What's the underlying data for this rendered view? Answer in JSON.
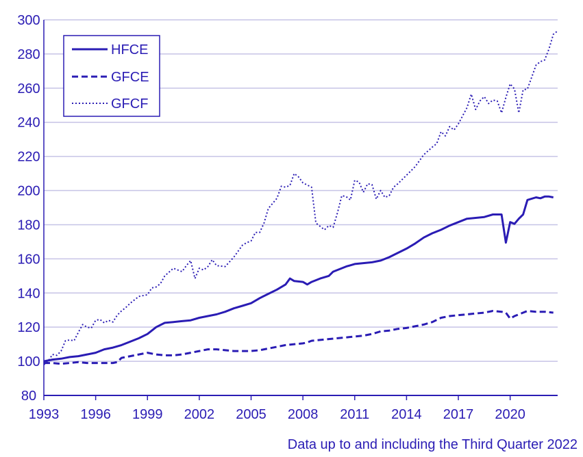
{
  "colors": {
    "series": "#2a1cb4",
    "grid": "#c6c3e6",
    "axis": "#2a1cb4",
    "text": "#2a1cb4"
  },
  "footnote": "Data up to and including the Third Quarter 2022",
  "chart_data": {
    "type": "line",
    "title": "",
    "xlabel": "",
    "ylabel": "",
    "xlim": [
      1993.0,
      2022.75
    ],
    "ylim": [
      80,
      300
    ],
    "yticks": [
      80,
      100,
      120,
      140,
      160,
      180,
      200,
      220,
      240,
      260,
      280,
      300
    ],
    "ytick_labels": [
      "80",
      "100",
      "120",
      "140",
      "160",
      "180",
      "200",
      "220",
      "240",
      "260",
      "280",
      "300"
    ],
    "xticks": [
      1993,
      1996,
      1999,
      2002,
      2005,
      2008,
      2011,
      2014,
      2017,
      2020
    ],
    "xtick_labels": [
      "1993",
      "1996",
      "1999",
      "2002",
      "2005",
      "2008",
      "2011",
      "2014",
      "2017",
      "2020"
    ],
    "grid": true,
    "legend_position": "top-left",
    "series": [
      {
        "name": "HFCE",
        "style": "solid",
        "points": [
          [
            1993.0,
            100
          ],
          [
            1993.5,
            101
          ],
          [
            1994.0,
            101.5
          ],
          [
            1994.5,
            102.5
          ],
          [
            1995.0,
            103
          ],
          [
            1995.5,
            104
          ],
          [
            1996.0,
            105
          ],
          [
            1996.5,
            107
          ],
          [
            1997.0,
            108
          ],
          [
            1997.5,
            109.5
          ],
          [
            1998.0,
            111.5
          ],
          [
            1998.5,
            113.5
          ],
          [
            1999.0,
            116
          ],
          [
            1999.5,
            120
          ],
          [
            2000.0,
            122.5
          ],
          [
            2000.5,
            123
          ],
          [
            2001.0,
            123.5
          ],
          [
            2001.5,
            124
          ],
          [
            2002.0,
            125.5
          ],
          [
            2002.5,
            126.5
          ],
          [
            2003.0,
            127.5
          ],
          [
            2003.5,
            129
          ],
          [
            2004.0,
            131
          ],
          [
            2004.5,
            132.5
          ],
          [
            2005.0,
            134
          ],
          [
            2005.5,
            137
          ],
          [
            2006.0,
            139.5
          ],
          [
            2006.5,
            142
          ],
          [
            2007.0,
            145
          ],
          [
            2007.25,
            148.5
          ],
          [
            2007.5,
            147
          ],
          [
            2008.0,
            146.5
          ],
          [
            2008.25,
            145
          ],
          [
            2008.5,
            146.5
          ],
          [
            2009.0,
            148.5
          ],
          [
            2009.5,
            150
          ],
          [
            2009.75,
            152.5
          ],
          [
            2010.0,
            153.5
          ],
          [
            2010.5,
            155.5
          ],
          [
            2011.0,
            157
          ],
          [
            2011.5,
            157.5
          ],
          [
            2012.0,
            158
          ],
          [
            2012.5,
            159
          ],
          [
            2013.0,
            161
          ],
          [
            2013.5,
            163.5
          ],
          [
            2014.0,
            166
          ],
          [
            2014.5,
            169
          ],
          [
            2015.0,
            172.5
          ],
          [
            2015.5,
            175
          ],
          [
            2016.0,
            177
          ],
          [
            2016.5,
            179.5
          ],
          [
            2017.0,
            181.5
          ],
          [
            2017.5,
            183.5
          ],
          [
            2018.0,
            184
          ],
          [
            2018.5,
            184.5
          ],
          [
            2019.0,
            186
          ],
          [
            2019.5,
            186
          ],
          [
            2019.75,
            169.5
          ],
          [
            2020.0,
            181.5
          ],
          [
            2020.25,
            180.5
          ],
          [
            2020.5,
            183.5
          ],
          [
            2020.75,
            186
          ],
          [
            2021.0,
            194.5
          ],
          [
            2021.5,
            196
          ],
          [
            2021.75,
            195.5
          ],
          [
            2022.0,
            196.5
          ],
          [
            2022.25,
            196.5
          ],
          [
            2022.5,
            196
          ]
        ]
      },
      {
        "name": "GFCE",
        "style": "dashed",
        "points": [
          [
            1993.0,
            99
          ],
          [
            1993.5,
            99
          ],
          [
            1994.0,
            98.5
          ],
          [
            1994.5,
            99
          ],
          [
            1995.0,
            99.5
          ],
          [
            1995.5,
            99
          ],
          [
            1996.0,
            99
          ],
          [
            1996.5,
            99
          ],
          [
            1997.0,
            99
          ],
          [
            1997.25,
            99.5
          ],
          [
            1997.5,
            102
          ],
          [
            1998.0,
            103
          ],
          [
            1998.5,
            104
          ],
          [
            1999.0,
            105
          ],
          [
            1999.5,
            104
          ],
          [
            2000.0,
            103.5
          ],
          [
            2000.5,
            103.5
          ],
          [
            2001.0,
            104
          ],
          [
            2001.5,
            105
          ],
          [
            2002.0,
            106
          ],
          [
            2002.5,
            107
          ],
          [
            2003.0,
            107
          ],
          [
            2003.5,
            106.5
          ],
          [
            2004.0,
            106
          ],
          [
            2004.5,
            106
          ],
          [
            2005.0,
            106
          ],
          [
            2005.5,
            106.5
          ],
          [
            2006.0,
            107.5
          ],
          [
            2006.5,
            108.5
          ],
          [
            2007.0,
            109.5
          ],
          [
            2007.5,
            110
          ],
          [
            2008.0,
            110.5
          ],
          [
            2008.25,
            111
          ],
          [
            2008.5,
            112
          ],
          [
            2009.0,
            112.5
          ],
          [
            2009.5,
            113
          ],
          [
            2010.0,
            113.5
          ],
          [
            2010.5,
            114
          ],
          [
            2011.0,
            114.5
          ],
          [
            2011.5,
            115
          ],
          [
            2012.0,
            116
          ],
          [
            2012.5,
            117.5
          ],
          [
            2013.0,
            118
          ],
          [
            2013.5,
            119
          ],
          [
            2014.0,
            119.5
          ],
          [
            2014.5,
            120.5
          ],
          [
            2015.0,
            121.5
          ],
          [
            2015.5,
            123
          ],
          [
            2016.0,
            125.5
          ],
          [
            2016.5,
            126.5
          ],
          [
            2017.0,
            127
          ],
          [
            2017.5,
            127.5
          ],
          [
            2018.0,
            128
          ],
          [
            2018.5,
            128.5
          ],
          [
            2019.0,
            129.5
          ],
          [
            2019.5,
            129
          ],
          [
            2019.75,
            128.5
          ],
          [
            2020.0,
            125
          ],
          [
            2020.25,
            126.5
          ],
          [
            2020.5,
            127.5
          ],
          [
            2020.75,
            128.5
          ],
          [
            2021.0,
            129.5
          ],
          [
            2021.5,
            129
          ],
          [
            2022.0,
            129
          ],
          [
            2022.5,
            128.5
          ]
        ]
      },
      {
        "name": "GFCF",
        "style": "dotted",
        "points": [
          [
            1993.0,
            98
          ],
          [
            1993.25,
            100
          ],
          [
            1993.5,
            104
          ],
          [
            1993.75,
            103.5
          ],
          [
            1994.0,
            106
          ],
          [
            1994.25,
            112
          ],
          [
            1994.5,
            112.5
          ],
          [
            1994.75,
            112
          ],
          [
            1995.0,
            117
          ],
          [
            1995.25,
            121.5
          ],
          [
            1995.5,
            120
          ],
          [
            1995.75,
            119.5
          ],
          [
            1996.0,
            124
          ],
          [
            1996.25,
            124.5
          ],
          [
            1996.5,
            122.5
          ],
          [
            1996.75,
            124
          ],
          [
            1997.0,
            123
          ],
          [
            1997.25,
            127
          ],
          [
            1997.5,
            129.5
          ],
          [
            1997.75,
            131.5
          ],
          [
            1998.0,
            134
          ],
          [
            1998.5,
            138
          ],
          [
            1999.0,
            139
          ],
          [
            1999.25,
            143
          ],
          [
            1999.5,
            143.5
          ],
          [
            1999.75,
            145.5
          ],
          [
            2000.0,
            150
          ],
          [
            2000.5,
            154.5
          ],
          [
            2001.0,
            152.5
          ],
          [
            2001.25,
            156
          ],
          [
            2001.5,
            159
          ],
          [
            2001.75,
            148.5
          ],
          [
            2002.0,
            154.5
          ],
          [
            2002.25,
            153.5
          ],
          [
            2002.5,
            155.5
          ],
          [
            2002.75,
            159.5
          ],
          [
            2003.0,
            156
          ],
          [
            2003.5,
            155.5
          ],
          [
            2004.0,
            161
          ],
          [
            2004.5,
            168
          ],
          [
            2004.75,
            169.5
          ],
          [
            2005.0,
            170.5
          ],
          [
            2005.25,
            175.5
          ],
          [
            2005.5,
            175.5
          ],
          [
            2005.75,
            181
          ],
          [
            2006.0,
            189.5
          ],
          [
            2006.5,
            195.5
          ],
          [
            2006.75,
            202.5
          ],
          [
            2007.0,
            202
          ],
          [
            2007.25,
            203
          ],
          [
            2007.5,
            210
          ],
          [
            2007.75,
            208
          ],
          [
            2008.0,
            204.5
          ],
          [
            2008.5,
            202
          ],
          [
            2008.75,
            181
          ],
          [
            2009.0,
            179
          ],
          [
            2009.25,
            177
          ],
          [
            2009.5,
            179.5
          ],
          [
            2009.75,
            178.5
          ],
          [
            2010.0,
            187
          ],
          [
            2010.25,
            197
          ],
          [
            2010.5,
            196.5
          ],
          [
            2010.75,
            194.5
          ],
          [
            2011.0,
            206
          ],
          [
            2011.25,
            205
          ],
          [
            2011.5,
            199
          ],
          [
            2011.75,
            204
          ],
          [
            2012.0,
            203.5
          ],
          [
            2012.25,
            195
          ],
          [
            2012.5,
            200
          ],
          [
            2012.75,
            196
          ],
          [
            2013.0,
            197
          ],
          [
            2013.25,
            202
          ],
          [
            2013.5,
            204
          ],
          [
            2014.0,
            209
          ],
          [
            2014.5,
            214
          ],
          [
            2015.0,
            221
          ],
          [
            2015.5,
            225.5
          ],
          [
            2015.75,
            227.5
          ],
          [
            2016.0,
            234.5
          ],
          [
            2016.25,
            232
          ],
          [
            2016.5,
            237.5
          ],
          [
            2016.75,
            235.5
          ],
          [
            2017.0,
            239
          ],
          [
            2017.5,
            248.5
          ],
          [
            2017.75,
            256.5
          ],
          [
            2018.0,
            247.5
          ],
          [
            2018.25,
            252.5
          ],
          [
            2018.5,
            255
          ],
          [
            2018.75,
            251
          ],
          [
            2019.0,
            253
          ],
          [
            2019.25,
            252.5
          ],
          [
            2019.5,
            245.5
          ],
          [
            2019.75,
            254.5
          ],
          [
            2020.0,
            262.5
          ],
          [
            2020.25,
            259.5
          ],
          [
            2020.5,
            245.5
          ],
          [
            2020.75,
            259
          ],
          [
            2021.0,
            259.5
          ],
          [
            2021.25,
            266.5
          ],
          [
            2021.5,
            273.5
          ],
          [
            2021.75,
            275.5
          ],
          [
            2022.0,
            276.5
          ],
          [
            2022.25,
            283
          ],
          [
            2022.5,
            291.5
          ],
          [
            2022.75,
            293.5
          ]
        ]
      }
    ]
  }
}
